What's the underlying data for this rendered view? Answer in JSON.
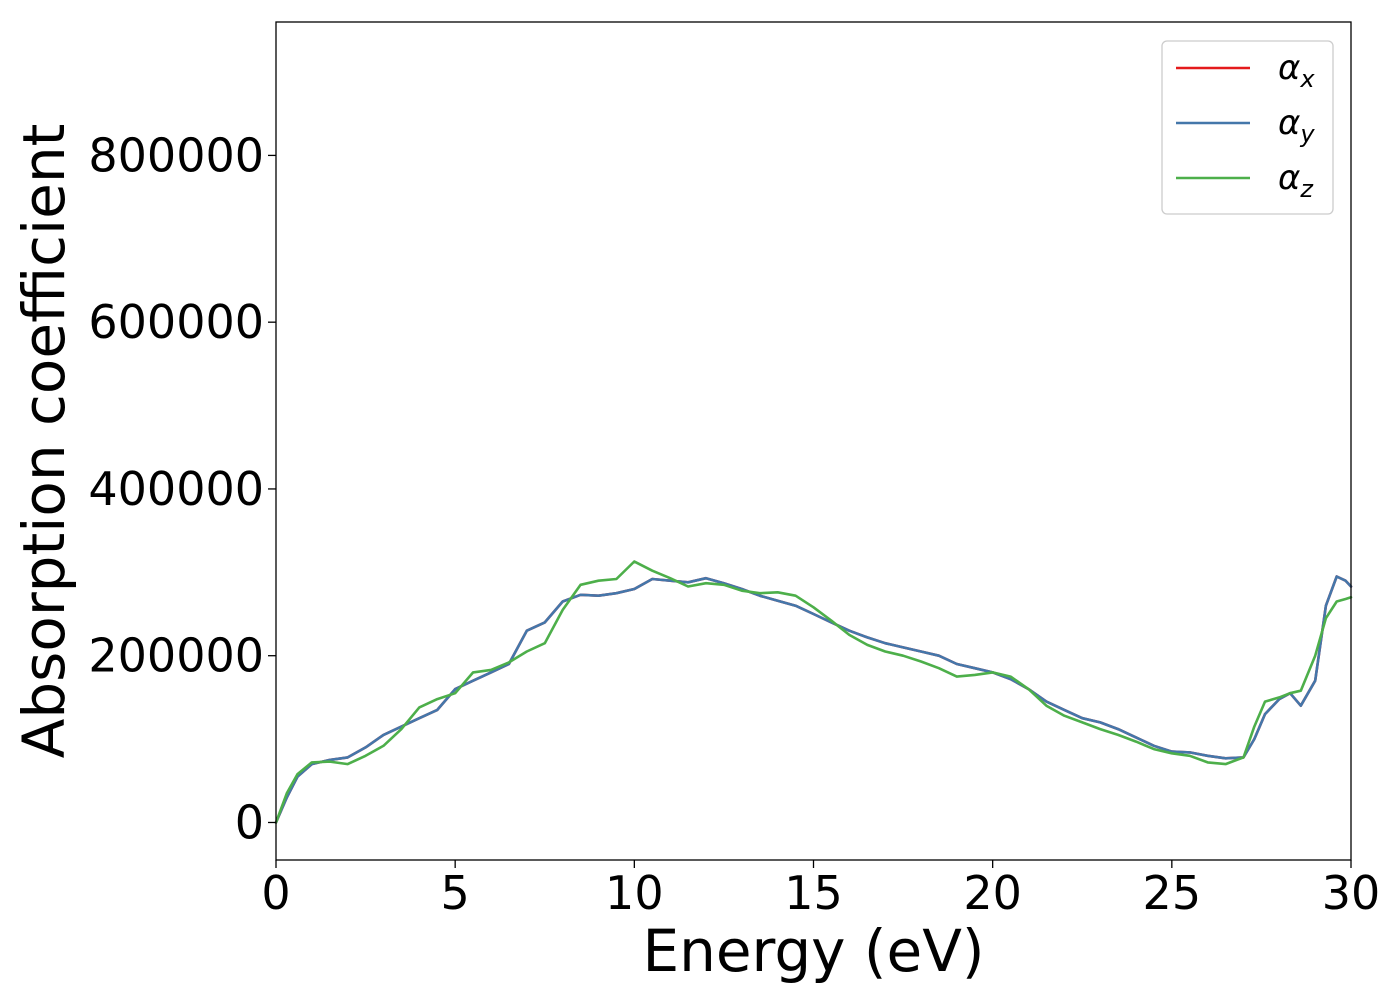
{
  "chart_data": {
    "type": "line",
    "title": "",
    "xlabel": "Energy (eV)",
    "ylabel": "Absorption coefficient",
    "xlim": [
      0,
      30
    ],
    "ylim": [
      -45000,
      960000
    ],
    "x_ticks": [
      0,
      5,
      10,
      15,
      20,
      25,
      30
    ],
    "x_tick_labels": [
      "0",
      "5",
      "10",
      "15",
      "20",
      "25",
      "30"
    ],
    "y_ticks": [
      0,
      200000,
      400000,
      600000,
      800000
    ],
    "y_tick_labels": [
      "0",
      "200000",
      "400000",
      "600000",
      "800000"
    ],
    "grid": false,
    "legend_position": "top-right",
    "series": [
      {
        "name": "α_x",
        "legend_symbol": "α",
        "legend_sub": "x",
        "color": "#e41a1c",
        "x": [
          0,
          0.3,
          0.6,
          1.0,
          1.5,
          2.0,
          2.5,
          3.0,
          3.5,
          4.0,
          4.5,
          5.0,
          5.5,
          6.0,
          6.5,
          7.0,
          7.5,
          8.0,
          8.5,
          9.0,
          9.5,
          10.0,
          10.5,
          11.0,
          11.5,
          12.0,
          12.5,
          13.0,
          13.5,
          14.0,
          14.5,
          15.0,
          15.5,
          16.0,
          16.5,
          17.0,
          17.5,
          18.0,
          18.5,
          19.0,
          19.5,
          20.0,
          20.5,
          21.0,
          21.5,
          22.0,
          22.5,
          23.0,
          23.5,
          24.0,
          24.5,
          25.0,
          25.5,
          26.0,
          26.5,
          27.0,
          27.3,
          27.6,
          28.0,
          28.3,
          28.6,
          29.0,
          29.3,
          29.6,
          29.85,
          30.0
        ],
        "y": [
          0,
          30000,
          55000,
          70000,
          75000,
          78000,
          90000,
          105000,
          115000,
          125000,
          135000,
          160000,
          170000,
          180000,
          190000,
          230000,
          240000,
          265000,
          273000,
          272000,
          275000,
          280000,
          292000,
          290000,
          288000,
          293000,
          287000,
          280000,
          272000,
          266000,
          260000,
          250000,
          240000,
          230000,
          222000,
          215000,
          210000,
          205000,
          200000,
          190000,
          185000,
          180000,
          172000,
          160000,
          145000,
          135000,
          125000,
          120000,
          112000,
          102000,
          92000,
          85000,
          84000,
          80000,
          77000,
          78000,
          100000,
          130000,
          148000,
          155000,
          140000,
          170000,
          260000,
          295000,
          290000,
          283000
        ]
      },
      {
        "name": "α_y",
        "legend_symbol": "α",
        "legend_sub": "y",
        "color": "#4477aa",
        "x": [
          0,
          0.3,
          0.6,
          1.0,
          1.5,
          2.0,
          2.5,
          3.0,
          3.5,
          4.0,
          4.5,
          5.0,
          5.5,
          6.0,
          6.5,
          7.0,
          7.5,
          8.0,
          8.5,
          9.0,
          9.5,
          10.0,
          10.5,
          11.0,
          11.5,
          12.0,
          12.5,
          13.0,
          13.5,
          14.0,
          14.5,
          15.0,
          15.5,
          16.0,
          16.5,
          17.0,
          17.5,
          18.0,
          18.5,
          19.0,
          19.5,
          20.0,
          20.5,
          21.0,
          21.5,
          22.0,
          22.5,
          23.0,
          23.5,
          24.0,
          24.5,
          25.0,
          25.5,
          26.0,
          26.5,
          27.0,
          27.3,
          27.6,
          28.0,
          28.3,
          28.6,
          29.0,
          29.3,
          29.6,
          29.85,
          30.0
        ],
        "y": [
          0,
          30000,
          55000,
          70000,
          75000,
          78000,
          90000,
          105000,
          115000,
          125000,
          135000,
          160000,
          170000,
          180000,
          190000,
          230000,
          240000,
          265000,
          273000,
          272000,
          275000,
          280000,
          292000,
          290000,
          288000,
          293000,
          287000,
          280000,
          272000,
          266000,
          260000,
          250000,
          240000,
          230000,
          222000,
          215000,
          210000,
          205000,
          200000,
          190000,
          185000,
          180000,
          172000,
          160000,
          145000,
          135000,
          125000,
          120000,
          112000,
          102000,
          92000,
          85000,
          84000,
          80000,
          77000,
          78000,
          100000,
          130000,
          148000,
          155000,
          140000,
          170000,
          260000,
          295000,
          290000,
          283000
        ]
      },
      {
        "name": "α_z",
        "legend_symbol": "α",
        "legend_sub": "z",
        "color": "#4daf4a",
        "x": [
          0,
          0.3,
          0.6,
          1.0,
          1.5,
          2.0,
          2.5,
          3.0,
          3.5,
          4.0,
          4.5,
          5.0,
          5.5,
          6.0,
          6.5,
          7.0,
          7.5,
          8.0,
          8.5,
          9.0,
          9.5,
          10.0,
          10.5,
          11.0,
          11.5,
          12.0,
          12.5,
          13.0,
          13.5,
          14.0,
          14.5,
          15.0,
          15.5,
          16.0,
          16.5,
          17.0,
          17.5,
          18.0,
          18.5,
          19.0,
          19.5,
          20.0,
          20.5,
          21.0,
          21.5,
          22.0,
          22.5,
          23.0,
          23.5,
          24.0,
          24.5,
          25.0,
          25.5,
          26.0,
          26.5,
          27.0,
          27.3,
          27.6,
          28.0,
          28.3,
          28.6,
          29.0,
          29.3,
          29.6,
          29.85,
          30.0
        ],
        "y": [
          0,
          35000,
          58000,
          72000,
          73000,
          70000,
          80000,
          92000,
          112000,
          138000,
          148000,
          155000,
          180000,
          183000,
          192000,
          205000,
          215000,
          255000,
          285000,
          290000,
          292000,
          313000,
          302000,
          293000,
          283000,
          287000,
          285000,
          278000,
          275000,
          276000,
          272000,
          258000,
          242000,
          225000,
          213000,
          205000,
          200000,
          193000,
          185000,
          175000,
          177000,
          180000,
          175000,
          160000,
          140000,
          128000,
          120000,
          112000,
          105000,
          97000,
          88000,
          83000,
          80000,
          72000,
          70000,
          78000,
          115000,
          145000,
          150000,
          155000,
          158000,
          200000,
          245000,
          265000,
          268000,
          270000
        ]
      }
    ]
  }
}
